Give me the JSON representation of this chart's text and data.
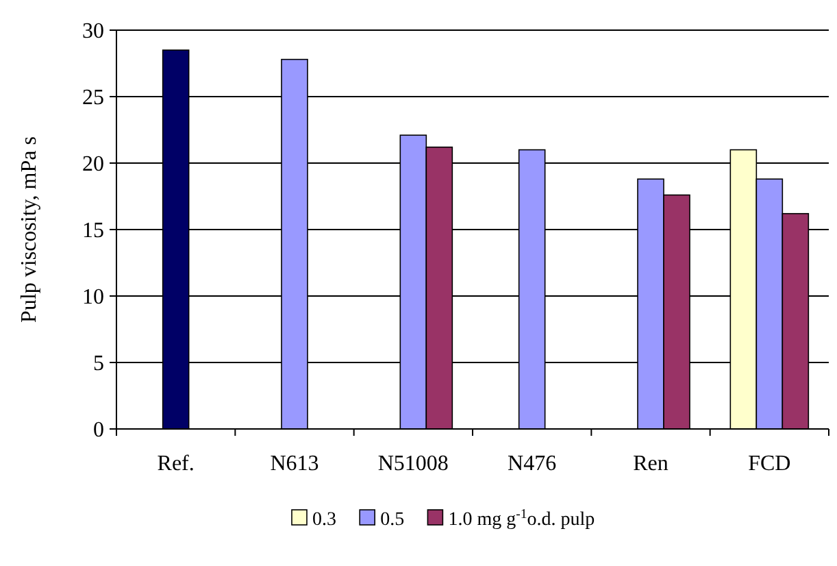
{
  "chart_data": {
    "type": "bar",
    "ylabel": "Pulp viscosity, mPa s",
    "categories": [
      "Ref.",
      "N613",
      "N51008",
      "N476",
      "Ren",
      "FCD"
    ],
    "series": [
      {
        "name": "0.3",
        "color": "#ffffcc",
        "values": [
          null,
          null,
          null,
          null,
          null,
          21.0
        ]
      },
      {
        "name": "0.5",
        "color": "#9999ff",
        "colors": [
          "#000066",
          "#9999ff",
          "#9999ff",
          "#9999ff",
          "#9999ff",
          "#9999ff"
        ],
        "values": [
          28.5,
          27.8,
          22.1,
          21.0,
          18.8,
          18.8
        ]
      },
      {
        "name": "1.0 mg g$^{-1}$o.d. pulp",
        "color": "#993366",
        "values": [
          null,
          null,
          21.2,
          null,
          17.6,
          16.2
        ]
      }
    ],
    "ylim": [
      0,
      30
    ],
    "yticks": [
      0,
      5,
      10,
      15,
      20,
      25,
      30
    ],
    "grid": "y",
    "legend": "bottom"
  }
}
